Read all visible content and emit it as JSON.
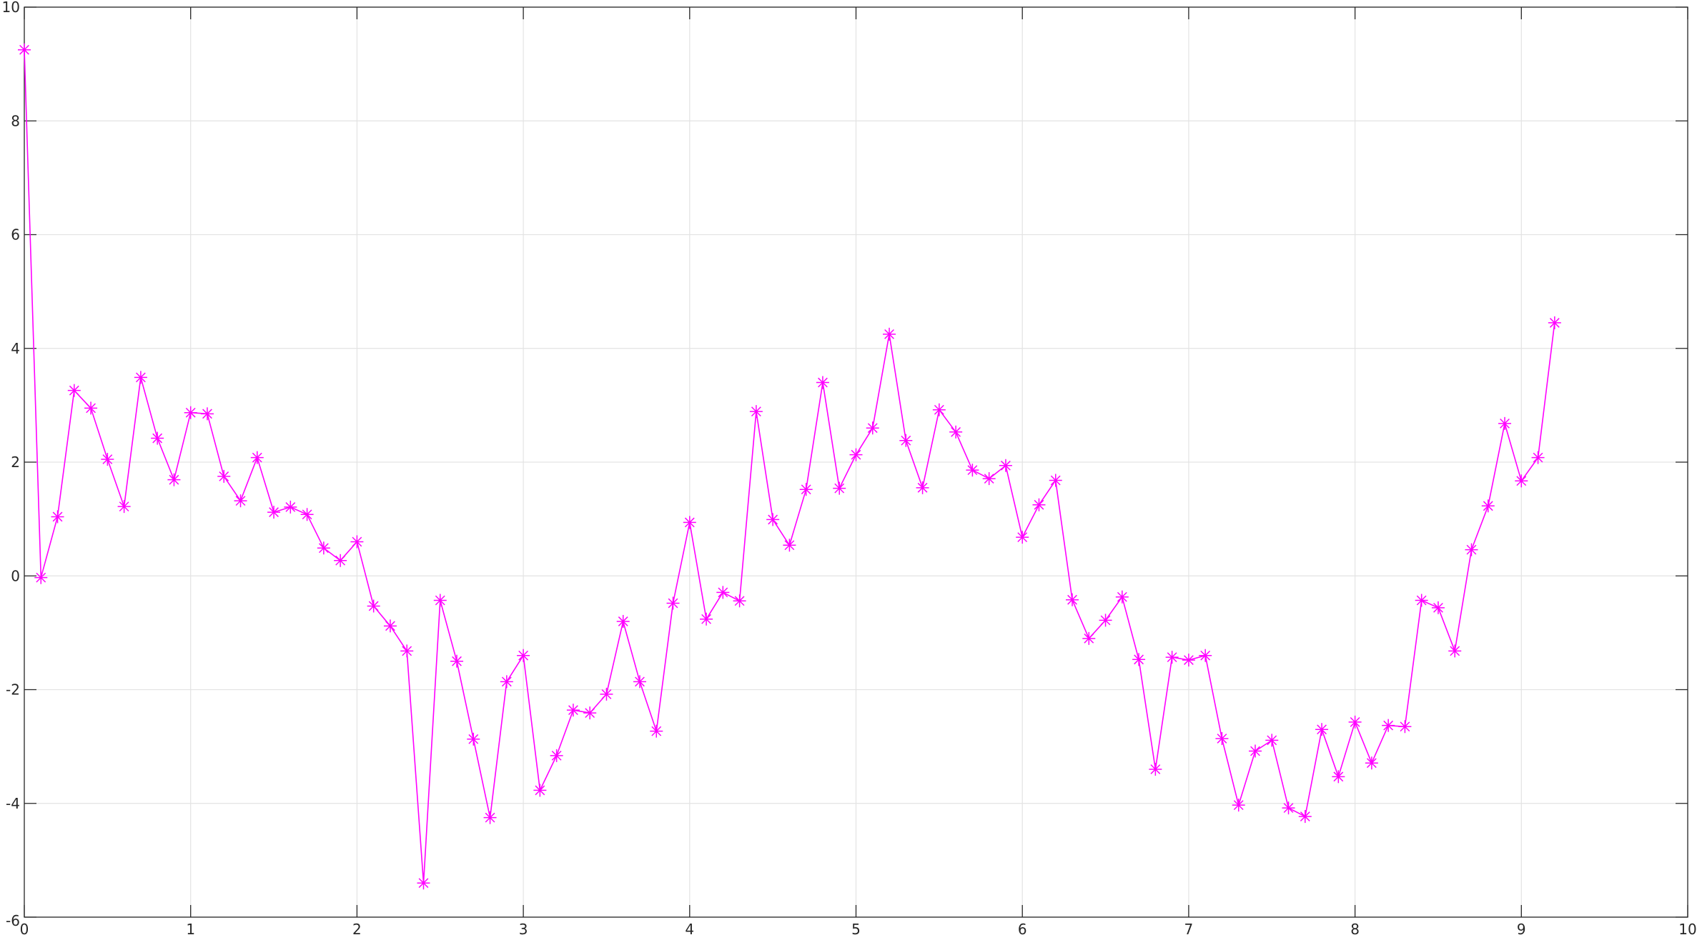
{
  "chart_data": {
    "type": "line",
    "title": "",
    "xlabel": "",
    "ylabel": "",
    "xlim": [
      0,
      10
    ],
    "ylim": [
      -6,
      10
    ],
    "grid": true,
    "legend": "none",
    "marker": "asterisk",
    "x_ticks": [
      "0",
      "1",
      "2",
      "3",
      "4",
      "5",
      "6",
      "7",
      "8",
      "9",
      "10"
    ],
    "y_ticks": [
      "-6",
      "-4",
      "-2",
      "0",
      "2",
      "4",
      "6",
      "8",
      "10"
    ],
    "series": [
      {
        "color": "#ff00ff",
        "x": [
          0,
          0.1,
          0.2,
          0.3,
          0.4,
          0.5,
          0.6,
          0.7,
          0.8,
          0.9,
          1.0,
          1.1,
          1.2,
          1.3,
          1.4,
          1.5,
          1.6,
          1.7,
          1.8,
          1.9,
          2.0,
          2.1,
          2.2,
          2.3,
          2.4,
          2.5,
          2.6,
          2.7,
          2.8,
          2.9,
          3.0,
          3.1,
          3.2,
          3.3,
          3.4,
          3.5,
          3.6,
          3.7,
          3.8,
          3.9,
          4.0,
          4.1,
          4.2,
          4.3,
          4.4,
          4.5,
          4.6,
          4.7,
          4.8,
          4.9,
          5.0,
          5.1,
          5.2,
          5.3,
          5.4,
          5.5,
          5.6,
          5.7,
          5.8,
          5.9,
          6.0,
          6.1,
          6.2,
          6.3,
          6.4,
          6.5,
          6.6,
          6.7,
          6.8,
          6.9,
          7.0,
          7.1,
          7.2,
          7.3,
          7.4,
          7.5,
          7.6,
          7.7,
          7.8,
          7.9,
          8.0,
          8.1,
          8.2,
          8.3,
          8.4,
          8.5,
          8.6,
          8.7,
          8.8,
          8.9,
          9.0,
          9.1,
          9.2
        ],
        "y": [
          9.25,
          -0.03,
          1.04,
          3.26,
          2.95,
          2.05,
          1.22,
          3.49,
          2.42,
          1.69,
          2.87,
          2.85,
          1.75,
          1.32,
          2.08,
          1.12,
          1.21,
          1.08,
          0.49,
          0.27,
          0.6,
          -0.53,
          -0.88,
          -1.32,
          -5.4,
          -0.43,
          -1.5,
          -2.87,
          -4.25,
          -1.86,
          -1.4,
          -3.77,
          -3.16,
          -2.36,
          -2.41,
          -2.08,
          -0.8,
          -1.86,
          -2.73,
          -0.48,
          0.94,
          -0.76,
          -0.29,
          -0.44,
          2.89,
          0.99,
          0.54,
          1.52,
          3.4,
          1.54,
          2.13,
          2.6,
          4.25,
          2.38,
          1.55,
          2.92,
          2.53,
          1.86,
          1.71,
          1.94,
          0.68,
          1.25,
          1.68,
          -0.42,
          -1.1,
          -0.78,
          -0.37,
          -1.47,
          -3.4,
          -1.43,
          -1.48,
          -1.4,
          -2.86,
          -4.03,
          -3.08,
          -2.89,
          -4.08,
          -4.23,
          -2.7,
          -3.53,
          -2.57,
          -3.29,
          -2.63,
          -2.65,
          -0.43,
          -0.56,
          -1.32,
          0.46,
          1.23,
          2.68,
          1.67,
          2.08,
          4.45
        ]
      }
    ]
  }
}
